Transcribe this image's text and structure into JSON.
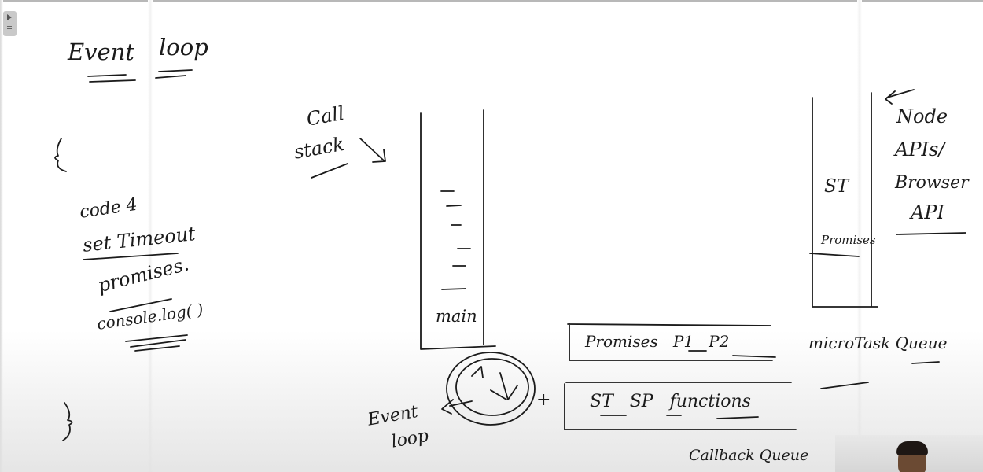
{
  "notes": {
    "title_event": "Event",
    "title_loop": "loop",
    "brace_open": "{",
    "brace_close": "}",
    "code_label": "code 4",
    "code_items": [
      "set Timeout",
      "promises.",
      "console.log( )"
    ],
    "call_stack": [
      "Call",
      "stack"
    ],
    "stack_frames_label": "main",
    "api_box_items": [
      "ST",
      "Promises"
    ],
    "api_label": [
      "Node",
      "APIs/",
      "Browser",
      "API"
    ],
    "microtask_queue_content": "Promises   P1   P2",
    "microtask_queue_label": "microTask Queue",
    "callback_queue_content": "ST   SP   functions",
    "callback_queue_label": "Callback Queue",
    "event_loop_label": [
      "Event",
      "loop"
    ],
    "plus_sign": "+"
  },
  "icons": {
    "panel_toggle": "panel-toggle-icon",
    "event_loop_cycle": "cycle-arrows-icon"
  },
  "colors": {
    "ink": "#1b1b1b",
    "background": "#ffffff"
  }
}
